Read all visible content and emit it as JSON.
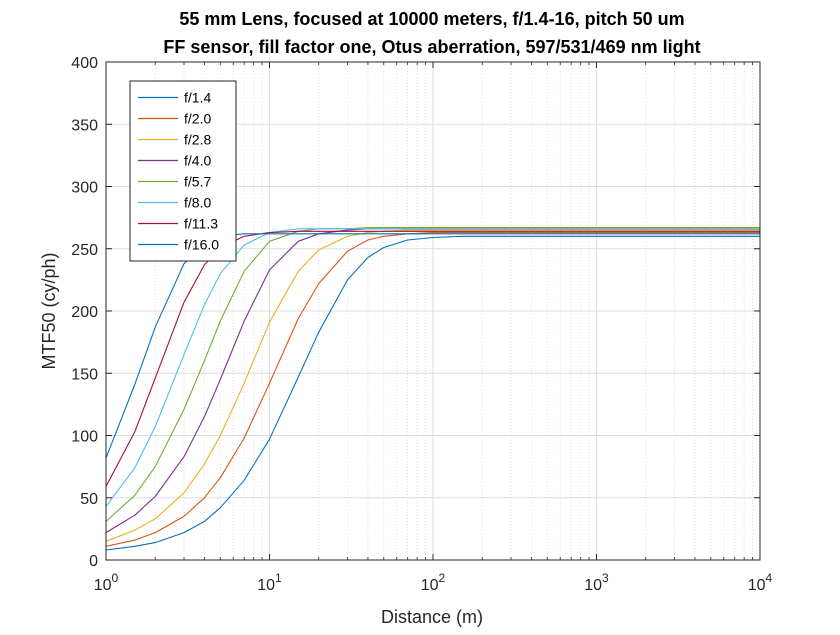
{
  "chart_data": {
    "type": "line",
    "title_lines": [
      "55 mm Lens, focused at 10000 meters, f/1.4-16, pitch 50 um",
      "FF sensor, fill factor one, Otus aberration, 597/531/469 nm light"
    ],
    "xlabel": "Distance (m)",
    "ylabel": "MTF50 (cy/ph)",
    "x_scale": "log",
    "xlim": [
      1,
      10000
    ],
    "ylim": [
      0,
      400
    ],
    "x_ticks": [
      {
        "value": 1,
        "base": "10",
        "exp": "0"
      },
      {
        "value": 10,
        "base": "10",
        "exp": "1"
      },
      {
        "value": 100,
        "base": "10",
        "exp": "2"
      },
      {
        "value": 1000,
        "base": "10",
        "exp": "3"
      },
      {
        "value": 10000,
        "base": "10",
        "exp": "4"
      }
    ],
    "y_ticks": [
      0,
      50,
      100,
      150,
      200,
      250,
      300,
      350,
      400
    ],
    "grid": true,
    "legend_position": "top-left",
    "x": [
      1,
      1.5,
      2,
      3,
      4,
      5,
      7,
      10,
      15,
      20,
      30,
      40,
      50,
      70,
      100,
      150,
      200,
      300,
      500,
      1000,
      10000
    ],
    "series": [
      {
        "name": "f/1.4",
        "color": "#0072BD",
        "values": [
          8,
          11,
          14,
          22,
          31,
          42,
          64,
          97,
          147,
          183,
          225,
          243,
          251,
          257,
          259,
          260,
          260,
          260,
          260,
          260,
          260
        ]
      },
      {
        "name": "f/2.0",
        "color": "#D95319",
        "values": [
          11,
          16,
          22,
          35,
          50,
          66,
          98,
          142,
          194,
          222,
          248,
          257,
          260,
          262,
          263,
          263,
          263,
          263,
          263,
          263,
          263
        ]
      },
      {
        "name": "f/2.8",
        "color": "#EDB120",
        "values": [
          15,
          24,
          33,
          54,
          77,
          100,
          142,
          191,
          232,
          249,
          260,
          263,
          264,
          265,
          265,
          265,
          265,
          265,
          265,
          265,
          265
        ]
      },
      {
        "name": "f/4.0",
        "color": "#7E2F8E",
        "values": [
          22,
          36,
          51,
          83,
          115,
          145,
          192,
          233,
          256,
          262,
          265,
          266,
          266,
          266,
          266,
          266,
          266,
          266,
          266,
          266,
          266
        ]
      },
      {
        "name": "f/5.7",
        "color": "#77AC30",
        "values": [
          31,
          52,
          75,
          121,
          160,
          192,
          232,
          256,
          264,
          266,
          266,
          267,
          267,
          267,
          267,
          267,
          267,
          267,
          267,
          267,
          267
        ]
      },
      {
        "name": "f/8.0",
        "color": "#4DBEEE",
        "values": [
          43,
          74,
          107,
          165,
          205,
          230,
          253,
          263,
          266,
          266,
          266,
          266,
          266,
          266,
          266,
          266,
          266,
          266,
          266,
          266,
          266
        ]
      },
      {
        "name": "f/11.3",
        "color": "#A2142F",
        "values": [
          59,
          103,
          146,
          207,
          237,
          251,
          260,
          263,
          264,
          264,
          264,
          264,
          264,
          264,
          264,
          264,
          264,
          264,
          264,
          264,
          264
        ]
      },
      {
        "name": "f/16.0",
        "color": "#0072BD",
        "values": [
          82,
          141,
          187,
          238,
          255,
          260,
          262,
          262,
          262,
          262,
          262,
          262,
          262,
          262,
          262,
          262,
          262,
          262,
          262,
          262,
          262
        ]
      }
    ]
  }
}
